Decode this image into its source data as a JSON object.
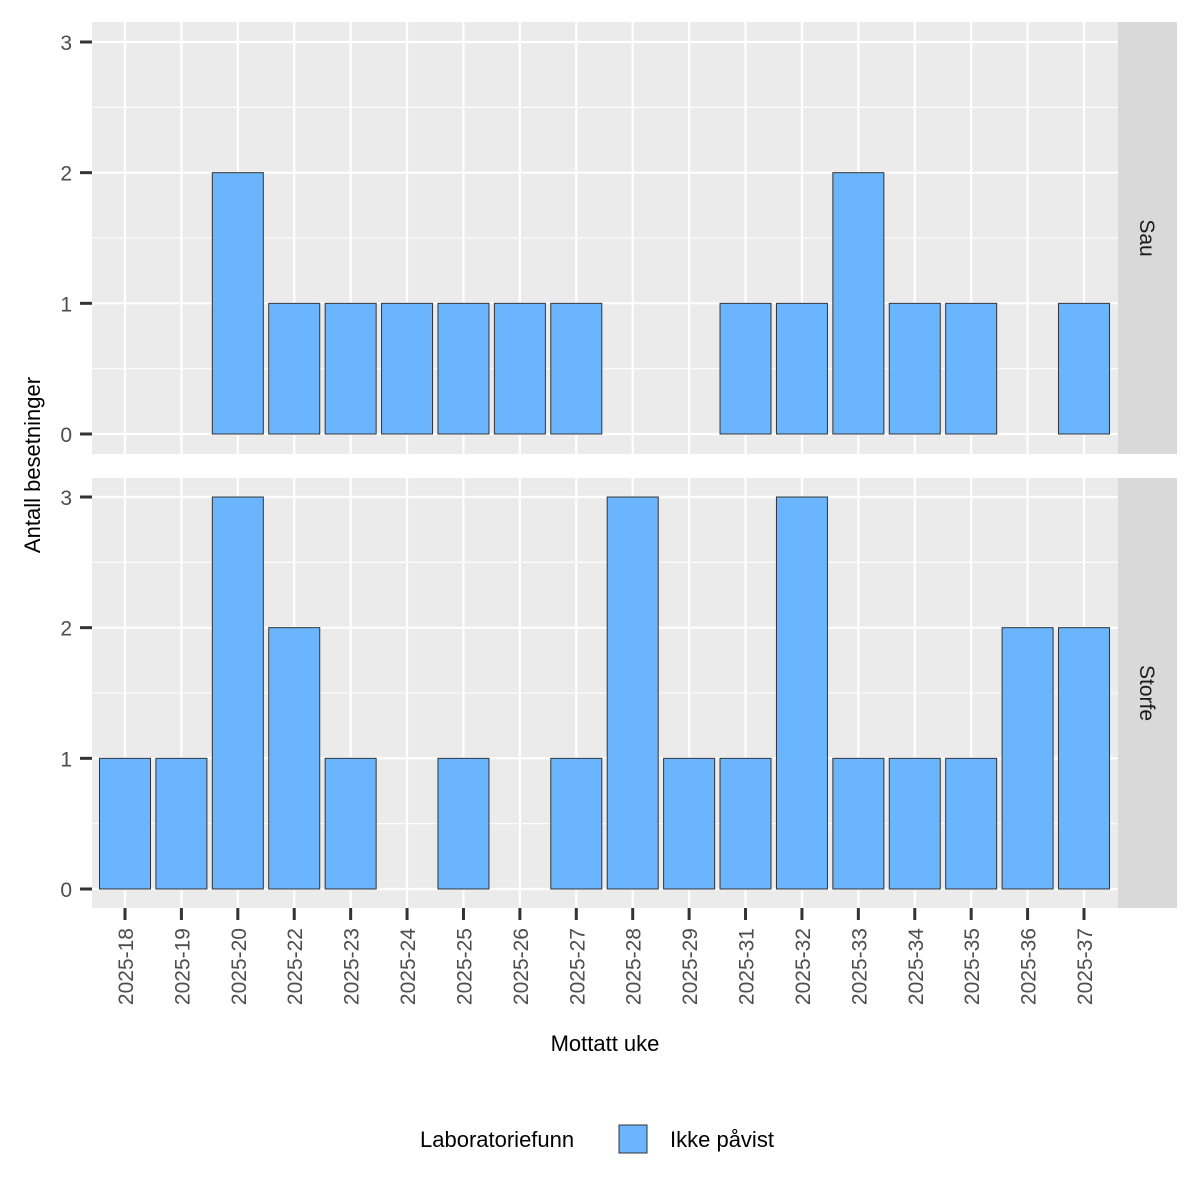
{
  "chart_data": {
    "type": "bar",
    "xlabel": "Mottatt uke",
    "ylabel": "Antall besetninger",
    "ylim": [
      0,
      3
    ],
    "yticks": [
      0,
      1,
      2,
      3
    ],
    "grid": true,
    "categories": [
      "2025-18",
      "2025-19",
      "2025-20",
      "2025-22",
      "2025-23",
      "2025-24",
      "2025-25",
      "2025-26",
      "2025-27",
      "2025-28",
      "2025-29",
      "2025-31",
      "2025-32",
      "2025-33",
      "2025-34",
      "2025-35",
      "2025-36",
      "2025-37"
    ],
    "facets": [
      {
        "label": "Sau",
        "values": [
          0,
          0,
          2,
          1,
          1,
          1,
          1,
          1,
          1,
          0,
          0,
          1,
          1,
          2,
          1,
          1,
          0,
          1
        ]
      },
      {
        "label": "Storfe",
        "values": [
          1,
          1,
          3,
          2,
          1,
          0,
          1,
          0,
          1,
          3,
          1,
          1,
          3,
          1,
          1,
          1,
          2,
          2
        ]
      }
    ],
    "legend": {
      "title": "Laboratoriefunn",
      "entries": [
        "Ikke påvist"
      ],
      "placement": "bottom"
    },
    "colors": {
      "fill": "#6BB5FF",
      "panel": "#EBEBEB",
      "strip": "#D9D9D9"
    }
  }
}
